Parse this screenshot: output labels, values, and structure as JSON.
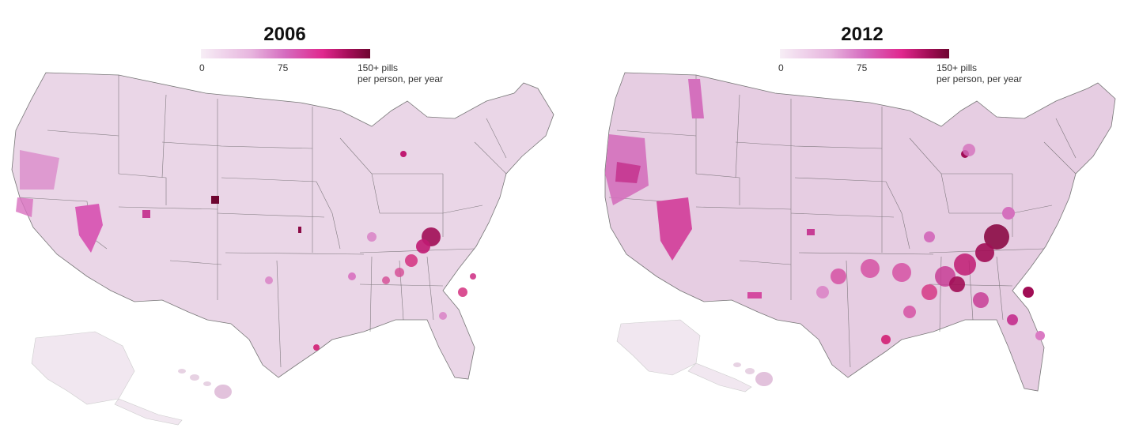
{
  "maps": [
    {
      "year": "2006",
      "legend": {
        "min_label": "0",
        "mid_label": "75",
        "max_label": "150+ pills",
        "unit_label": "per person, per year"
      },
      "hotspots": [
        {
          "region": "Appalachia (KY/WV)",
          "level": "very-high"
        },
        {
          "region": "Northern Colorado",
          "level": "very-high"
        },
        {
          "region": "Central Missouri",
          "level": "very-high"
        },
        {
          "region": "Northern California / Oregon",
          "level": "high"
        },
        {
          "region": "Nevada",
          "level": "high"
        },
        {
          "region": "Tennessee",
          "level": "high"
        },
        {
          "region": "Coastal South Carolina",
          "level": "high"
        }
      ]
    },
    {
      "year": "2012",
      "legend": {
        "min_label": "0",
        "mid_label": "75",
        "max_label": "150+ pills",
        "unit_label": "per person, per year"
      },
      "hotspots": [
        {
          "region": "Appalachia (KY/WV)",
          "level": "very-high"
        },
        {
          "region": "Tennessee",
          "level": "very-high"
        },
        {
          "region": "Northern California / Oregon",
          "level": "high"
        },
        {
          "region": "Nevada",
          "level": "high"
        },
        {
          "region": "Southeast (GA/AL/SC)",
          "level": "high"
        },
        {
          "region": "Arkansas / Oklahoma",
          "level": "high"
        },
        {
          "region": "Northern Michigan",
          "level": "high"
        }
      ]
    }
  ],
  "colors": {
    "scale_light": "#f7eef6",
    "scale_mid": "#e0288e",
    "scale_dark": "#6e0530",
    "land_base_2006": "#ecdbe9",
    "land_base_2012": "#e6cde2",
    "border": "#555555"
  }
}
